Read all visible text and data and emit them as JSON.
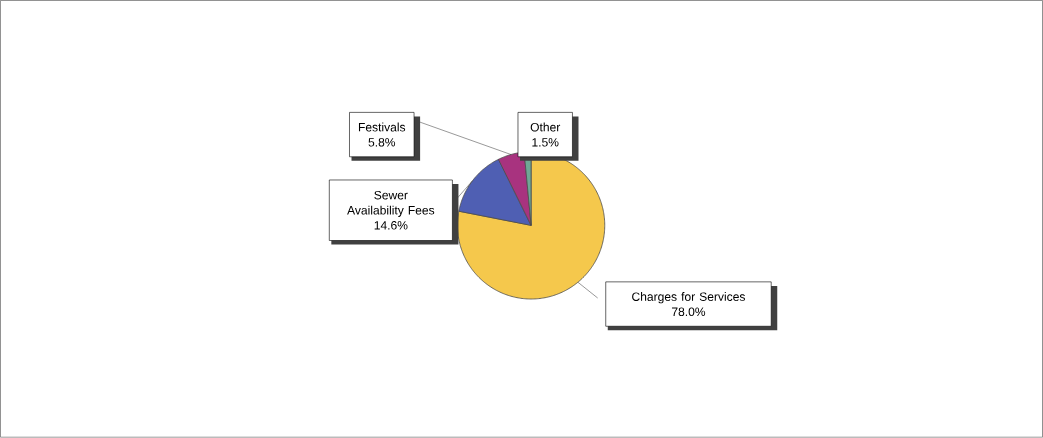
{
  "chart_data": {
    "type": "pie",
    "categories": [
      "Charges for Services",
      "Sewer Availability Fees",
      "Festivals",
      "Other"
    ],
    "values": [
      78.0,
      14.6,
      5.8,
      1.5
    ],
    "value_labels": [
      "78.0%",
      "14.6%",
      "5.8%",
      "1.5%"
    ],
    "colors": [
      "#f5c84c",
      "#4f5fb3",
      "#a8337f",
      "#6fa896"
    ],
    "legend": false
  }
}
